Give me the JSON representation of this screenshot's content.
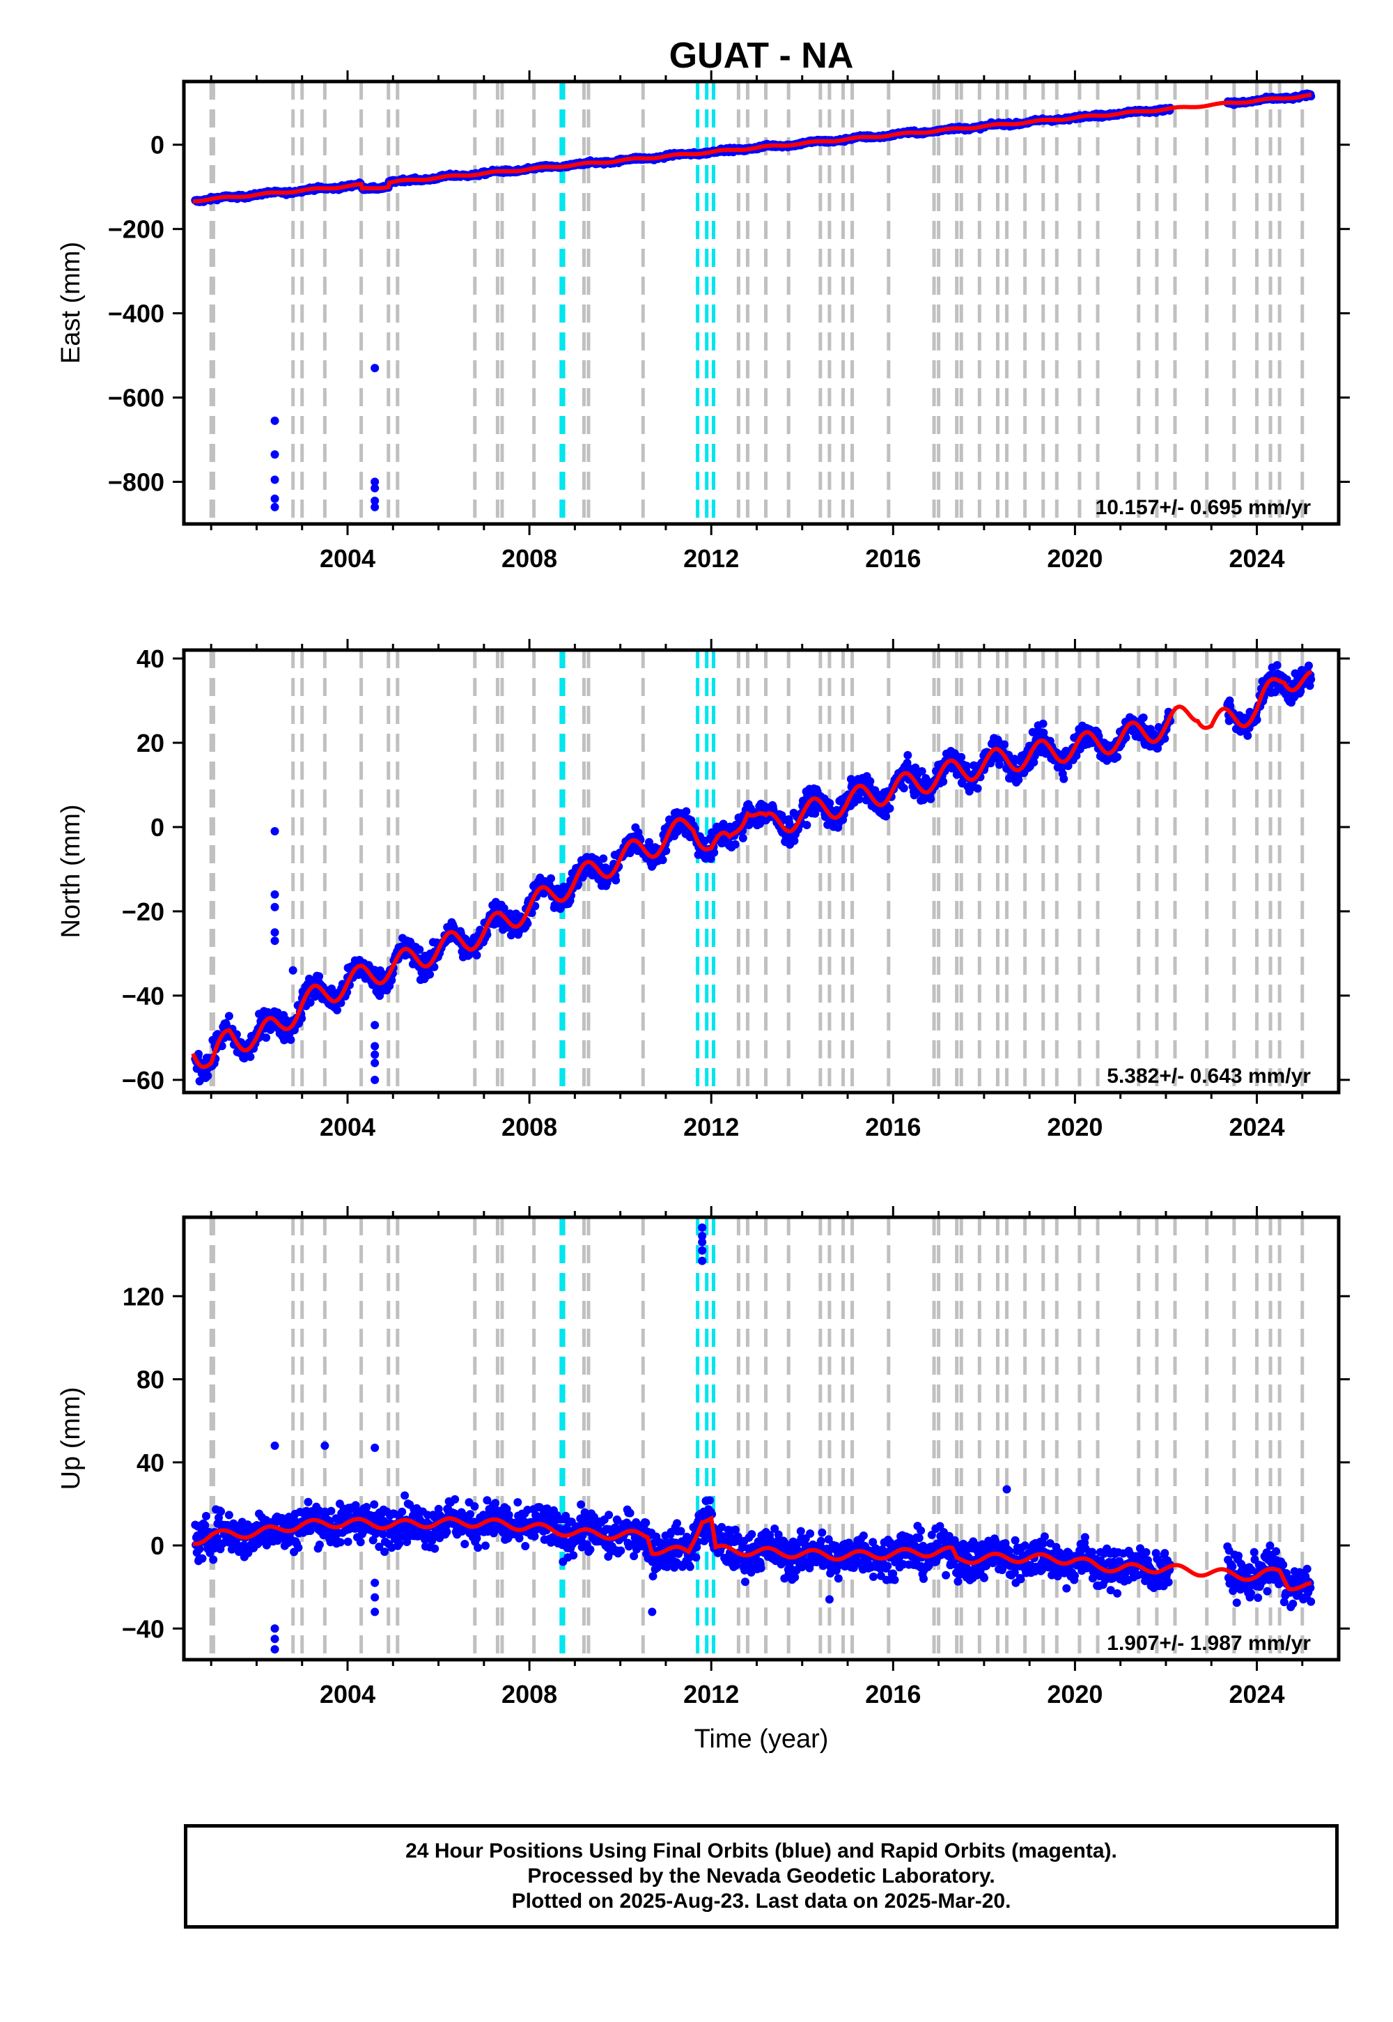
{
  "chart_data": [
    {
      "type": "scatter",
      "title": "GUAT - NA",
      "ylabel": "East (mm)",
      "xlabel": "",
      "xlim": [
        2000.4,
        2025.8
      ],
      "ylim": [
        -900,
        150
      ],
      "yticks": [
        0,
        -200,
        -400,
        -600,
        -800
      ],
      "xticks": [
        2004,
        2008,
        2012,
        2016,
        2020,
        2024
      ],
      "rate_label": "10.157+/- 0.695 mm/yr",
      "trend": {
        "start_year": 2000.6,
        "start_value": -133,
        "rate": 10.157,
        "seasonal_amp": 2,
        "offsets": [
          {
            "from": 2004.3,
            "to": 2004.9,
            "delta": -10
          }
        ]
      },
      "outliers": [
        [
          2002.4,
          -655
        ],
        [
          2002.4,
          -735
        ],
        [
          2002.4,
          -795
        ],
        [
          2002.4,
          -840
        ],
        [
          2002.4,
          -860
        ],
        [
          2004.6,
          -530
        ],
        [
          2004.6,
          -800
        ],
        [
          2004.6,
          -815
        ],
        [
          2004.6,
          -845
        ],
        [
          2004.6,
          -860
        ]
      ]
    },
    {
      "type": "scatter",
      "title": "",
      "ylabel": "North (mm)",
      "xlabel": "",
      "xlim": [
        2000.4,
        2025.8
      ],
      "ylim": [
        -63,
        42
      ],
      "yticks": [
        40,
        20,
        0,
        -20,
        -40,
        -60
      ],
      "xticks": [
        2004,
        2008,
        2012,
        2016,
        2020,
        2024
      ],
      "rate_label": "5.382+/- 0.643 mm/yr",
      "model_points": [
        [
          2000.6,
          -52
        ],
        [
          2001.0,
          -56
        ],
        [
          2001.4,
          -50
        ],
        [
          2002.0,
          -50
        ],
        [
          2002.5,
          -47
        ],
        [
          2003.0,
          -42
        ],
        [
          2004.0,
          -37
        ],
        [
          2005.0,
          -33
        ],
        [
          2006.0,
          -29
        ],
        [
          2007.0,
          -25
        ],
        [
          2008.0,
          -19
        ],
        [
          2008.8,
          -14
        ],
        [
          2009.5,
          -10
        ],
        [
          2010.5,
          -5
        ],
        [
          2011.0,
          -3
        ],
        [
          2011.6,
          1
        ],
        [
          2012.0,
          -5
        ],
        [
          2012.4,
          -4
        ],
        [
          2012.8,
          6
        ],
        [
          2013.2,
          0
        ],
        [
          2014.0,
          3
        ],
        [
          2015.0,
          6
        ],
        [
          2016.0,
          9
        ],
        [
          2017.0,
          12
        ],
        [
          2018.0,
          15
        ],
        [
          2019.0,
          17
        ],
        [
          2020.0,
          19
        ],
        [
          2021.0,
          21
        ],
        [
          2022.0,
          24
        ],
        [
          2022.7,
          28
        ],
        [
          2023.0,
          24
        ],
        [
          2024.0,
          28
        ],
        [
          2024.6,
          36
        ],
        [
          2025.2,
          34
        ]
      ],
      "seasonal_amp": 3,
      "outliers": [
        [
          2002.4,
          -1
        ],
        [
          2002.4,
          -16
        ],
        [
          2002.4,
          -19
        ],
        [
          2002.4,
          -25
        ],
        [
          2002.4,
          -27
        ],
        [
          2002.8,
          -34
        ],
        [
          2004.6,
          -47
        ],
        [
          2004.6,
          -52
        ],
        [
          2004.6,
          -54
        ],
        [
          2004.6,
          -56
        ],
        [
          2004.6,
          -60
        ]
      ]
    },
    {
      "type": "scatter",
      "title": "",
      "ylabel": "Up (mm)",
      "xlabel": "Time (year)",
      "xlim": [
        2000.4,
        2025.8
      ],
      "ylim": [
        -55,
        158
      ],
      "yticks": [
        120,
        80,
        40,
        0,
        -40
      ],
      "xticks": [
        2004,
        2008,
        2012,
        2016,
        2020,
        2024
      ],
      "rate_label": "1.907+/- 1.987 mm/yr",
      "model_points": [
        [
          2000.6,
          2
        ],
        [
          2001.0,
          5
        ],
        [
          2002.0,
          6
        ],
        [
          2003.0,
          10
        ],
        [
          2004.0,
          11
        ],
        [
          2005.0,
          10
        ],
        [
          2006.0,
          11
        ],
        [
          2007.0,
          11
        ],
        [
          2008.0,
          9
        ],
        [
          2009.0,
          6
        ],
        [
          2010.0,
          5
        ],
        [
          2010.6,
          5
        ],
        [
          2010.7,
          -2
        ],
        [
          2011.5,
          -3
        ],
        [
          2011.8,
          13
        ],
        [
          2012.0,
          13
        ],
        [
          2012.1,
          -2
        ],
        [
          2013.0,
          -3
        ],
        [
          2014.0,
          -4
        ],
        [
          2015.0,
          -5
        ],
        [
          2016.0,
          -4
        ],
        [
          2017.0,
          -3
        ],
        [
          2017.3,
          -3
        ],
        [
          2017.4,
          -7
        ],
        [
          2018.0,
          -6
        ],
        [
          2019.0,
          -6
        ],
        [
          2020.0,
          -7
        ],
        [
          2020.5,
          -10
        ],
        [
          2021.0,
          -11
        ],
        [
          2022.0,
          -11
        ],
        [
          2023.0,
          -13
        ],
        [
          2024.0,
          -15
        ],
        [
          2024.5,
          -12
        ],
        [
          2024.7,
          -19
        ],
        [
          2025.2,
          -20
        ]
      ],
      "seasonal_amp": 2,
      "spikes": [
        [
          2011.8,
          137
        ],
        [
          2011.8,
          142
        ],
        [
          2011.8,
          146
        ],
        [
          2011.8,
          149
        ],
        [
          2011.8,
          153
        ]
      ],
      "outliers": [
        [
          2002.4,
          -40
        ],
        [
          2002.4,
          -45
        ],
        [
          2002.4,
          -50
        ],
        [
          2002.4,
          48
        ],
        [
          2003.5,
          48
        ],
        [
          2004.6,
          47
        ],
        [
          2004.6,
          -18
        ],
        [
          2004.6,
          -25
        ],
        [
          2004.6,
          -32
        ],
        [
          2010.7,
          -32
        ],
        [
          2018.5,
          27
        ],
        [
          2014.6,
          -26
        ]
      ]
    }
  ],
  "event_lines": {
    "gray": [
      2001.0,
      2001.05,
      2002.8,
      2003.0,
      2003.5,
      2004.3,
      2004.9,
      2005.1,
      2006.8,
      2007.3,
      2007.4,
      2008.1,
      2009.2,
      2009.3,
      2010.5,
      2012.6,
      2012.8,
      2013.2,
      2013.7,
      2014.4,
      2014.6,
      2014.9,
      2015.1,
      2015.9,
      2016.9,
      2017.0,
      2017.4,
      2017.5,
      2017.9,
      2018.3,
      2018.5,
      2018.9,
      2019.3,
      2019.6,
      2020.1,
      2020.5,
      2021.4,
      2021.8,
      2022.2,
      2022.9,
      2023.5,
      2024.0,
      2024.3,
      2024.5,
      2025.0
    ],
    "cyan": [
      2008.7,
      2008.75,
      2011.7,
      2011.9,
      2012.05
    ]
  },
  "colors": {
    "points": "#0000ff",
    "model": "#ff0000",
    "event_gray": "#c0c0c0",
    "event_cyan": "#00e5ee"
  },
  "footer": {
    "line1": "24 Hour Positions Using Final Orbits (blue) and Rapid Orbits (magenta).",
    "line2": "Processed by the Nevada Geodetic Laboratory.",
    "line3": "Plotted on 2025-Aug-23. Last data on 2025-Mar-20."
  }
}
